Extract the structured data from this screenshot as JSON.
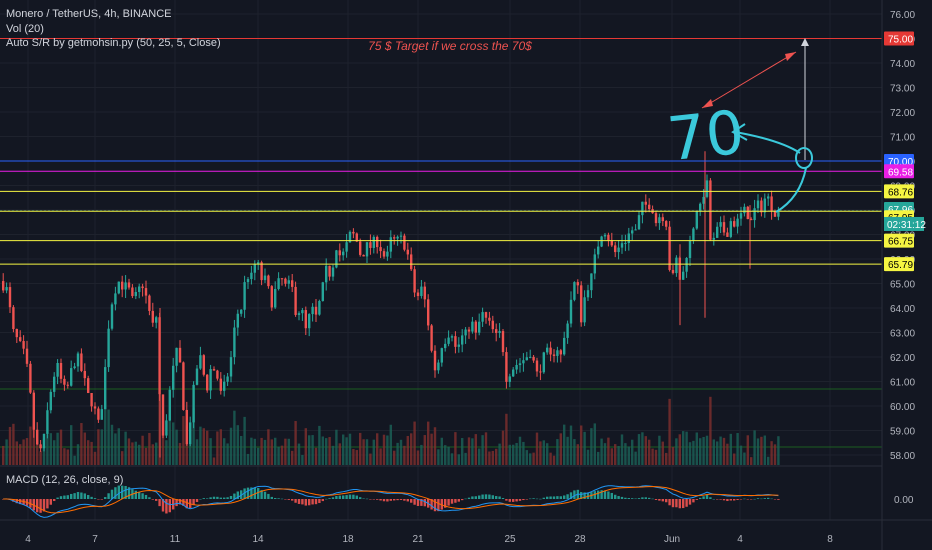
{
  "header": {
    "symbol_line": "Monero / TetherUS, 4h, BINANCE",
    "indicator_vol": "Vol (20)",
    "indicator_sr": "Auto S/R by getmohsin.py (50, 25, 5, Close)",
    "indicator_macd": "MACD (12, 26, close, 9)"
  },
  "colors": {
    "background": "#131722",
    "up": "#26a69a",
    "down": "#ef5350",
    "grid": "#1e222d",
    "axis_text": "#b2b5be",
    "annotation": "#ef5350",
    "handwriting": "#3bc9db"
  },
  "chart_data": [
    {
      "type": "candlestick",
      "title": "Monero / TetherUS, 4h, BINANCE",
      "ylim": [
        57.6,
        76.5
      ],
      "y_ticks": [
        "76.00",
        "75.00",
        "74.00",
        "73.00",
        "72.00",
        "71.00",
        "70.00",
        "69.00",
        "68.00",
        "67.00",
        "66.00",
        "65.00",
        "64.00",
        "63.00",
        "62.00",
        "61.00",
        "60.00",
        "59.00",
        "58.00"
      ],
      "x_ticks": [
        "4",
        "7",
        "11",
        "14",
        "18",
        "21",
        "25",
        "28",
        "Jun",
        "4",
        "8"
      ],
      "price_path": [
        [
          0,
          65.1
        ],
        [
          6,
          64.7
        ],
        [
          12,
          63.0
        ],
        [
          17,
          62.6
        ],
        [
          22,
          62.2
        ],
        [
          27,
          61.3
        ],
        [
          32,
          59.2
        ],
        [
          37,
          58.1
        ],
        [
          42,
          58.4
        ],
        [
          47,
          60.0
        ],
        [
          52,
          61.2
        ],
        [
          57,
          61.6
        ],
        [
          62,
          60.6
        ],
        [
          67,
          60.8
        ],
        [
          72,
          61.8
        ],
        [
          77,
          61.9
        ],
        [
          82,
          61.2
        ],
        [
          87,
          60.4
        ],
        [
          92,
          60.1
        ],
        [
          97,
          59.2
        ],
        [
          102,
          60.4
        ],
        [
          107,
          63.2
        ],
        [
          112,
          64.6
        ],
        [
          117,
          65.1
        ],
        [
          122,
          64.9
        ],
        [
          127,
          64.8
        ],
        [
          132,
          64.2
        ],
        [
          137,
          64.7
        ],
        [
          142,
          65.0
        ],
        [
          147,
          64.0
        ],
        [
          152,
          63.2
        ],
        [
          156,
          63.8
        ],
        [
          160,
          58.2
        ],
        [
          165,
          59.5
        ],
        [
          170,
          61.0
        ],
        [
          175,
          62.2
        ],
        [
          180,
          61.5
        ],
        [
          185,
          58.2
        ],
        [
          190,
          59.8
        ],
        [
          195,
          61.5
        ],
        [
          200,
          62.0
        ],
        [
          205,
          60.6
        ],
        [
          210,
          61.6
        ],
        [
          215,
          61.4
        ],
        [
          220,
          60.4
        ],
        [
          225,
          61.0
        ],
        [
          230,
          62.0
        ],
        [
          235,
          63.7
        ],
        [
          240,
          64.0
        ],
        [
          245,
          65.4
        ],
        [
          250,
          65.2
        ],
        [
          255,
          66.0
        ],
        [
          260,
          65.2
        ],
        [
          265,
          65.1
        ],
        [
          270,
          64.2
        ],
        [
          275,
          64.8
        ],
        [
          280,
          65.2
        ],
        [
          285,
          64.8
        ],
        [
          290,
          65.0
        ],
        [
          295,
          63.8
        ],
        [
          300,
          64.0
        ],
        [
          305,
          63.0
        ],
        [
          310,
          64.0
        ],
        [
          315,
          63.6
        ],
        [
          320,
          64.5
        ],
        [
          325,
          65.5
        ],
        [
          330,
          65.4
        ],
        [
          335,
          66.6
        ],
        [
          340,
          66.0
        ],
        [
          345,
          66.5
        ],
        [
          350,
          67.1
        ],
        [
          355,
          66.8
        ],
        [
          360,
          66.1
        ],
        [
          365,
          66.5
        ],
        [
          370,
          66.5
        ],
        [
          375,
          66.8
        ],
        [
          380,
          66.4
        ],
        [
          385,
          65.9
        ],
        [
          390,
          66.8
        ],
        [
          395,
          66.7
        ],
        [
          400,
          66.8
        ],
        [
          405,
          66.5
        ],
        [
          410,
          65.4
        ],
        [
          415,
          64.3
        ],
        [
          420,
          64.8
        ],
        [
          425,
          64.1
        ],
        [
          430,
          62.3
        ],
        [
          435,
          61.3
        ],
        [
          440,
          62.5
        ],
        [
          445,
          62.8
        ],
        [
          450,
          63.2
        ],
        [
          455,
          62.2
        ],
        [
          460,
          62.8
        ],
        [
          465,
          62.9
        ],
        [
          470,
          63.5
        ],
        [
          475,
          62.8
        ],
        [
          480,
          63.8
        ],
        [
          485,
          63.5
        ],
        [
          490,
          63.2
        ],
        [
          495,
          62.8
        ],
        [
          500,
          63.0
        ],
        [
          505,
          61.2
        ],
        [
          510,
          61.5
        ],
        [
          515,
          61.7
        ],
        [
          520,
          61.8
        ],
        [
          525,
          62.0
        ],
        [
          530,
          62.3
        ],
        [
          535,
          61.2
        ],
        [
          540,
          61.7
        ],
        [
          545,
          62.2
        ],
        [
          550,
          61.9
        ],
        [
          555,
          62.5
        ],
        [
          560,
          62.0
        ],
        [
          565,
          63.2
        ],
        [
          570,
          64.4
        ],
        [
          575,
          65.3
        ],
        [
          580,
          63.6
        ],
        [
          585,
          64.8
        ],
        [
          590,
          65.2
        ],
        [
          595,
          66.3
        ],
        [
          600,
          67.1
        ],
        [
          605,
          67.2
        ],
        [
          610,
          66.5
        ],
        [
          615,
          66.2
        ],
        [
          620,
          66.7
        ],
        [
          625,
          66.8
        ],
        [
          630,
          67.2
        ],
        [
          635,
          67.1
        ],
        [
          640,
          68.1
        ],
        [
          645,
          68.2
        ],
        [
          650,
          68.3
        ],
        [
          655,
          67.5
        ],
        [
          660,
          67.9
        ],
        [
          665,
          67.5
        ],
        [
          670,
          64.8
        ],
        [
          675,
          66.0
        ],
        [
          680,
          64.9
        ],
        [
          685,
          66.2
        ],
        [
          690,
          66.8
        ],
        [
          695,
          68.1
        ],
        [
          700,
          68.0
        ],
        [
          705,
          69.5
        ],
        [
          710,
          66.3
        ],
        [
          715,
          67.1
        ],
        [
          720,
          67.3
        ],
        [
          725,
          67.0
        ],
        [
          730,
          67.6
        ],
        [
          735,
          67.4
        ],
        [
          740,
          67.8
        ],
        [
          745,
          68.0
        ],
        [
          750,
          67.5
        ],
        [
          755,
          68.2
        ],
        [
          760,
          68.1
        ],
        [
          765,
          68.6
        ],
        [
          770,
          68.2
        ],
        [
          775,
          67.9
        ],
        [
          778,
          67.8
        ]
      ],
      "horizontal_lines": [
        {
          "price": 75.0,
          "label": "75.00",
          "color": "#e53935",
          "text_color": "#ffffff"
        },
        {
          "price": 70.0,
          "label": "70.00",
          "color": "#2962ff",
          "text_color": "#ffffff"
        },
        {
          "price": 69.58,
          "label": "69.58",
          "color": "#e91ee6",
          "text_color": "#ffffff"
        },
        {
          "price": 68.76,
          "label": "68.76",
          "color": "#f5f542",
          "text_color": "#000000"
        },
        {
          "price": 67.96,
          "label": "67.96",
          "color": "#26a69a",
          "text_color": "#ffffff"
        },
        {
          "price": 67.95,
          "label": "67.95",
          "color": "#f5f542",
          "text_color": "#000000"
        },
        {
          "price": 66.75,
          "label": "66.75",
          "color": "#f5f542",
          "text_color": "#000000"
        },
        {
          "price": 65.79,
          "label": "65.79",
          "color": "#f5f542",
          "text_color": "#000000"
        }
      ],
      "current_price": {
        "price": 67.96,
        "countdown": "02:31:12"
      },
      "annotation_text": "75 $ Target if we cross the 70$",
      "handwriting_text": "70"
    },
    {
      "type": "histogram",
      "title": "MACD (12, 26, close, 9)",
      "y_ticks": [
        "0.00"
      ]
    }
  ]
}
